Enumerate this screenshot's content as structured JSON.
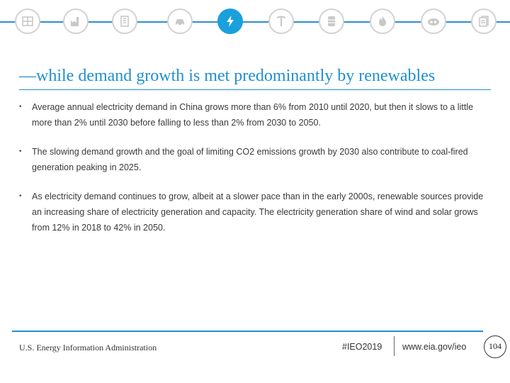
{
  "icon_bar": {
    "icons": [
      {
        "name": "housing-icon"
      },
      {
        "name": "industry-icon"
      },
      {
        "name": "buildings-icon"
      },
      {
        "name": "transportation-icon"
      },
      {
        "name": "electricity-icon",
        "active": true
      },
      {
        "name": "coal-mining-icon"
      },
      {
        "name": "oil-barrel-icon"
      },
      {
        "name": "natural-gas-flame-icon"
      },
      {
        "name": "co2-emissions-icon"
      },
      {
        "name": "documents-icon"
      }
    ],
    "colors": {
      "rule": "#2e8fcf",
      "active": "#1aa0dc",
      "inactive": "#c8c8c8"
    }
  },
  "slide": {
    "title": "—while demand growth is met predominantly by renewables",
    "bullets": [
      "Average annual electricity demand in China grows more than 6% from 2010 until 2020, but then it slows to a little more than 2% until 2030 before falling to less than 2% from 2030 to 2050.",
      "The slowing demand growth and the goal of limiting CO2 emissions growth by 2030 also contribute to coal-fired generation peaking in 2025.",
      "As electricity demand continues to grow, albeit at a slower pace than in the early 2000s, renewable sources provide an increasing share of electricity generation and capacity. The electricity generation share of wind and solar grows from 12% in 2018 to 42% in 2050."
    ],
    "bullet_marker": "•"
  },
  "footer": {
    "agency": "U.S. Energy Information Administration",
    "hashtag": "#IEO2019",
    "website": "www.eia.gov/ieo",
    "page_number": "104"
  }
}
